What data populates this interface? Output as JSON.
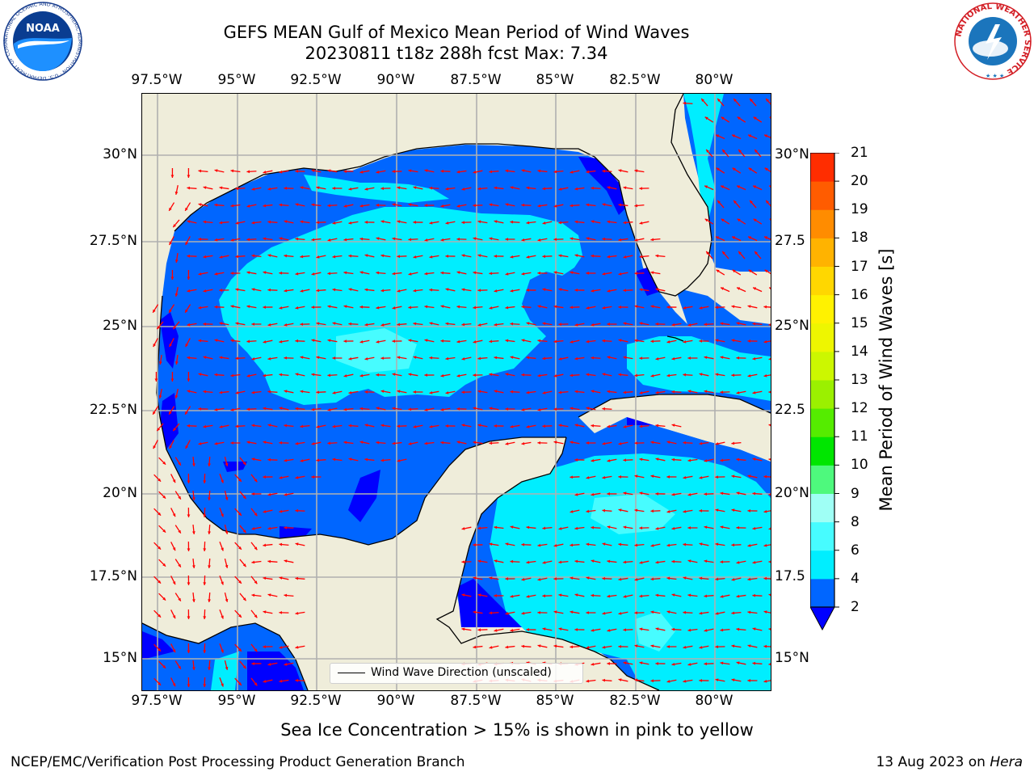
{
  "title_line1": "GEFS MEAN Gulf of Mexico Mean Period of Wind Waves",
  "title_line2": "20230811 t18z 288h fcst   Max: 7.34",
  "longitude_labels": [
    "97.5°W",
    "95°W",
    "92.5°W",
    "90°W",
    "87.5°W",
    "85°W",
    "82.5°W",
    "80°W"
  ],
  "latitude_labels_left": [
    "30°N",
    "27.5°N",
    "25°N",
    "22.5°N",
    "20°N",
    "17.5°N",
    "15°N"
  ],
  "latitude_labels_right": [
    "30°N",
    "27.5",
    "25°N",
    "22.5",
    "20°N",
    "17.5",
    "15°N"
  ],
  "legend_label": "Wind Wave Direction (unscaled)",
  "colorbar": {
    "title": "Mean Period of Wind Waves [s]",
    "ticks": [
      "2",
      "4",
      "6",
      "8",
      "9",
      "10",
      "11",
      "12",
      "13",
      "14",
      "15",
      "16",
      "17",
      "18",
      "19",
      "20",
      "21"
    ],
    "colors": [
      "#0066ff",
      "#00eeff",
      "#47fcff",
      "#9ffff5",
      "#4ef97d",
      "#00e600",
      "#55ec00",
      "#9bf000",
      "#ccf700",
      "#eef600",
      "#fff200",
      "#ffd700",
      "#ffb300",
      "#ff8c00",
      "#ff5c00",
      "#ff2d00",
      "#ff0000"
    ],
    "under_color": "#0000ff"
  },
  "map_colors": {
    "land": "#efedda",
    "period_lt_2": "#0000ff",
    "period_2_4": "#0066ff",
    "period_4_6": "#00eeff",
    "period_6_8": "#47fcff",
    "arrow": "#ff0000"
  },
  "ice_note": "Sea Ice Concentration > 15% is shown in pink to yellow",
  "footer_left": "NCEP/EMC/Verification Post Processing Product Generation Branch",
  "footer_date": "13 Aug 2023 on",
  "footer_host": "Hera",
  "logos": {
    "noaa_text": "NOAA",
    "noaa_ring": "NATIONAL OCEANIC AND ATMOSPHERIC ADMINISTRATION · U.S. DEPARTMENT OF COMMERCE",
    "nws_ring": "NATIONAL WEATHER SERVICE"
  }
}
